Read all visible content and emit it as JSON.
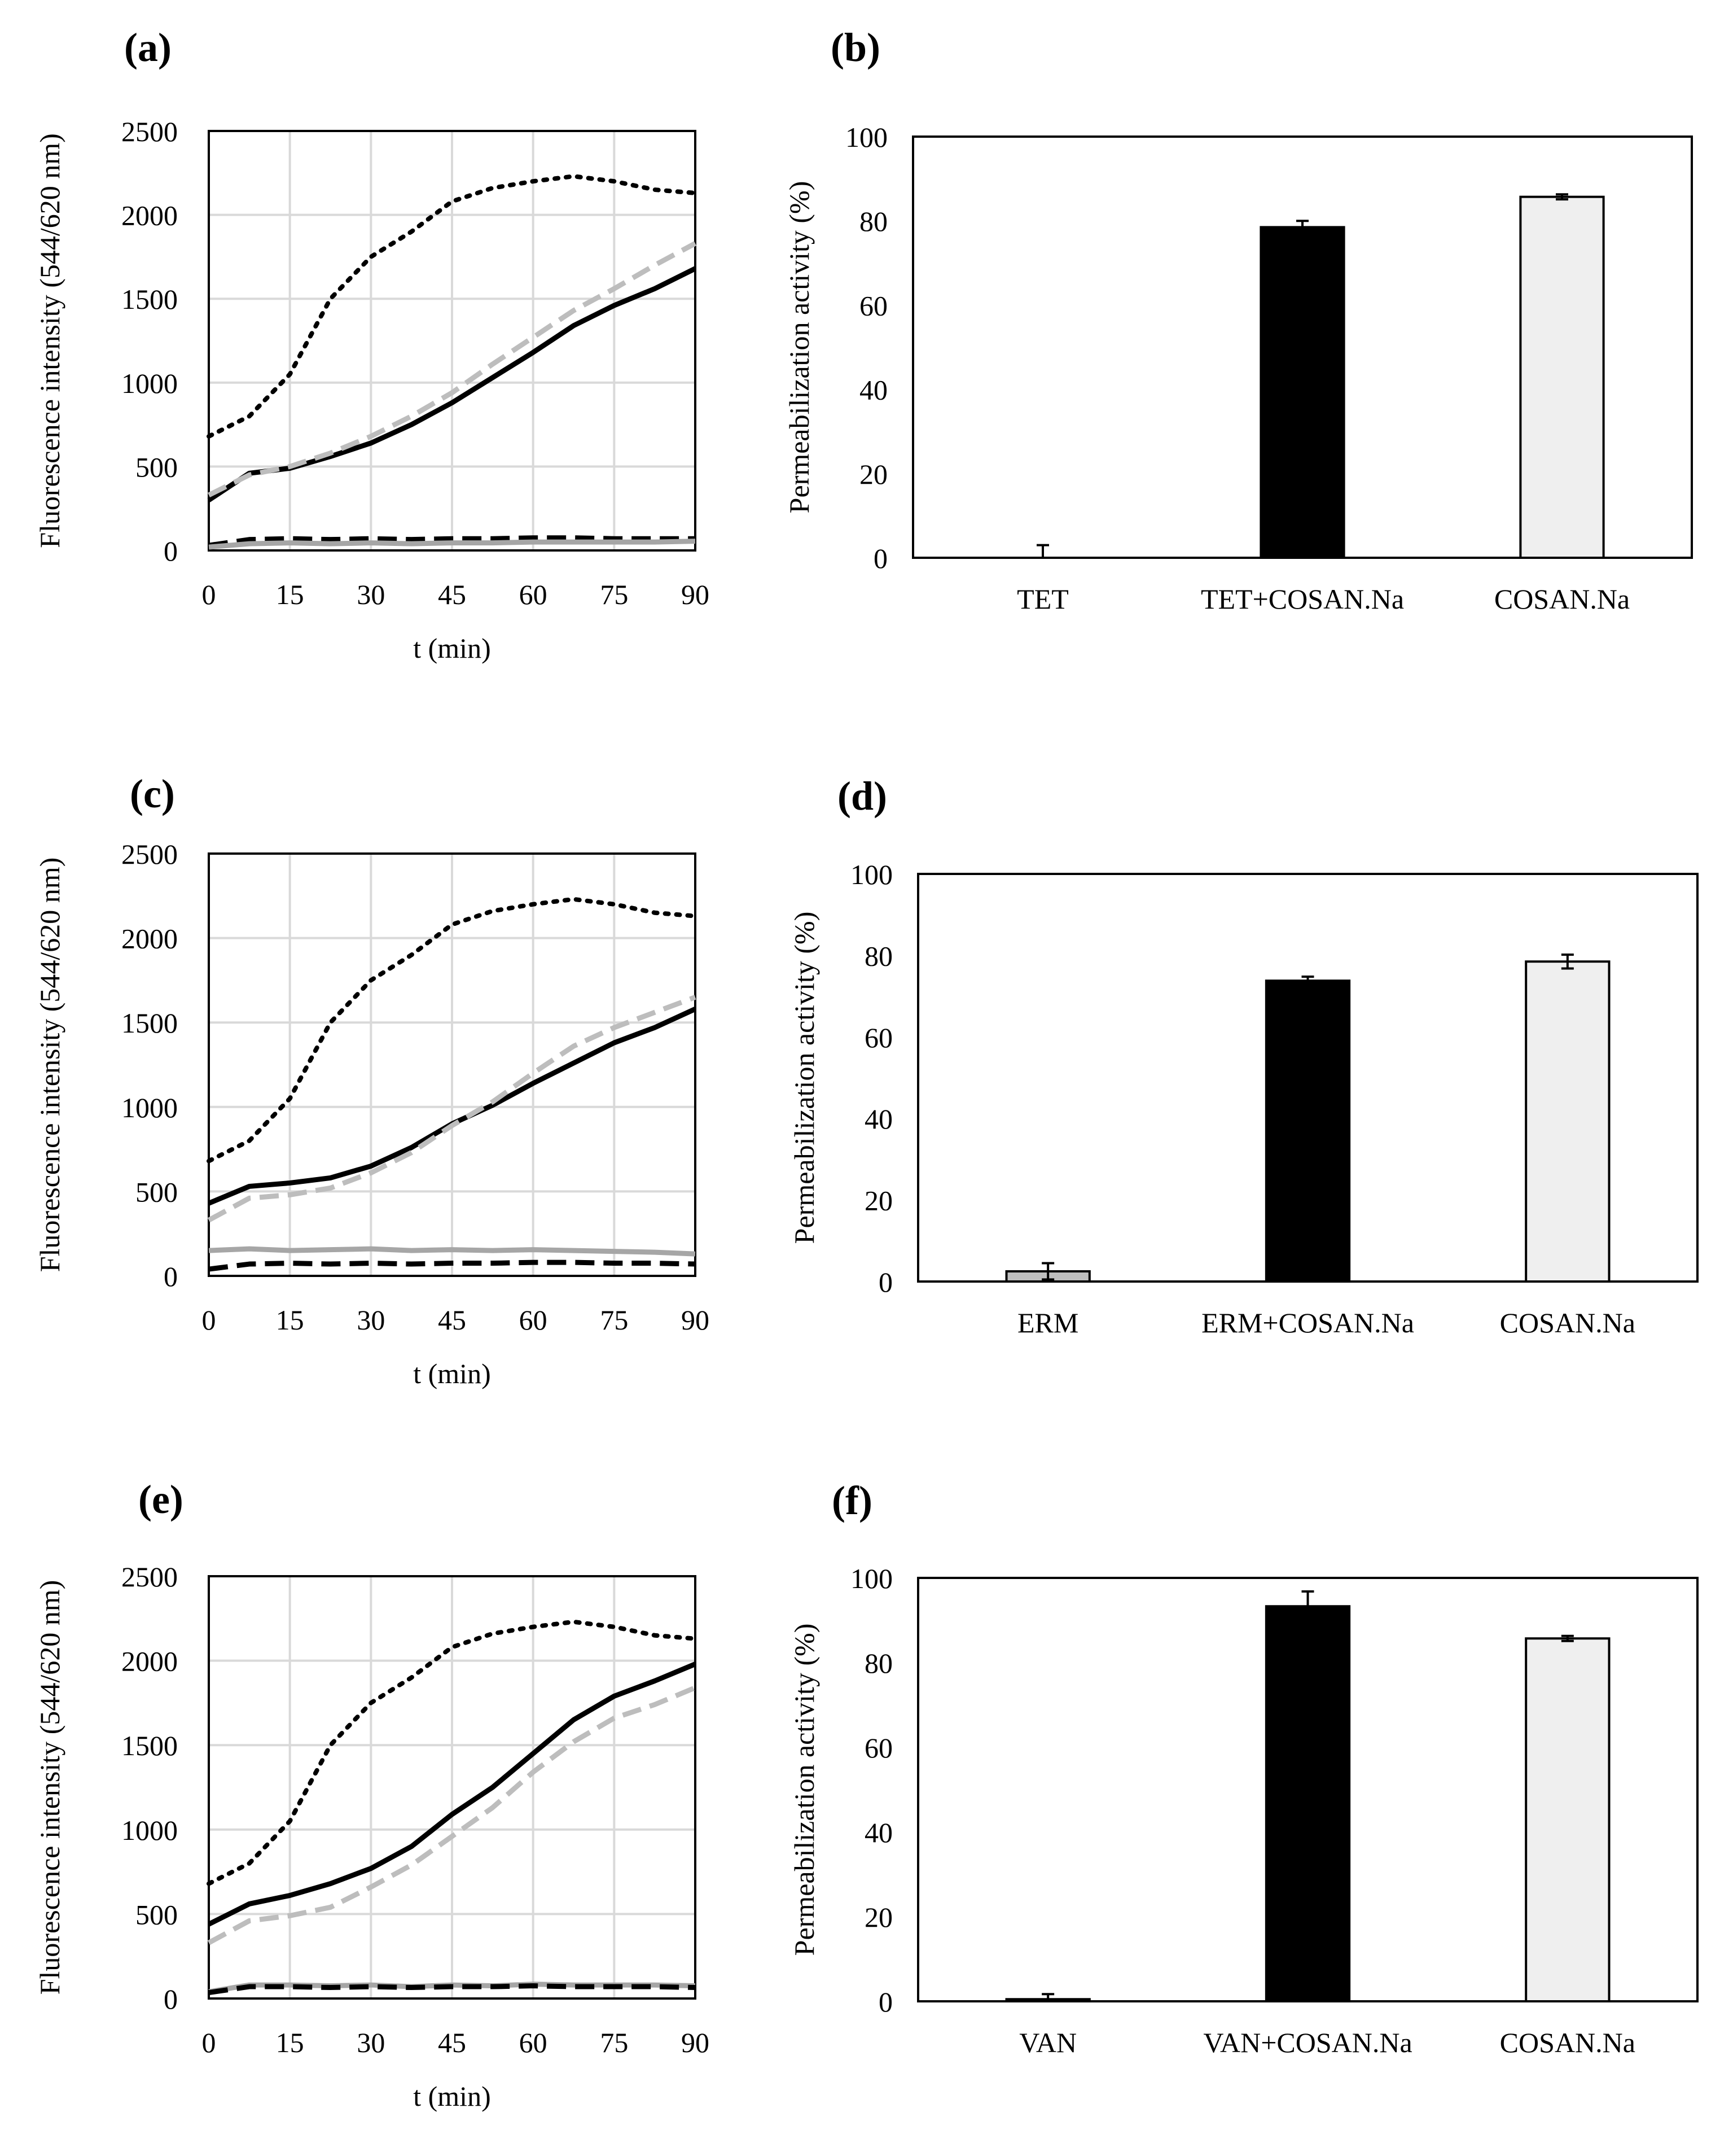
{
  "chart_data": [
    {
      "panel": "(a)",
      "type": "line",
      "xlabel": "t (min)",
      "ylabel": "Fluorescence intensity (544/620 nm)",
      "xlim": [
        0,
        90
      ],
      "ylim": [
        0,
        2500
      ],
      "xticks": [
        0,
        15,
        30,
        45,
        60,
        75,
        90
      ],
      "yticks": [
        0,
        500,
        1000,
        1500,
        2000,
        2500
      ],
      "grid": true,
      "x": [
        0,
        7.5,
        15,
        22.5,
        30,
        37.5,
        45,
        52.5,
        60,
        67.5,
        75,
        82.5,
        90
      ],
      "series": [
        {
          "name": "dotted-black",
          "color": "#000000",
          "style": "dotted",
          "values": [
            680,
            800,
            1050,
            1500,
            1750,
            1900,
            2080,
            2160,
            2200,
            2230,
            2200,
            2150,
            2130
          ]
        },
        {
          "name": "solid-black",
          "color": "#000000",
          "style": "solid",
          "values": [
            300,
            460,
            490,
            560,
            640,
            750,
            880,
            1030,
            1180,
            1340,
            1460,
            1560,
            1680
          ]
        },
        {
          "name": "dashed-grey",
          "color": "#bdbdbd",
          "style": "dashed",
          "values": [
            330,
            450,
            500,
            580,
            680,
            800,
            940,
            1110,
            1270,
            1430,
            1560,
            1700,
            1830
          ]
        },
        {
          "name": "dashed-black",
          "color": "#000000",
          "style": "dashed",
          "values": [
            30,
            65,
            70,
            65,
            70,
            65,
            70,
            70,
            75,
            75,
            70,
            70,
            70
          ]
        },
        {
          "name": "solid-grey",
          "color": "#a6a6a6",
          "style": "solid",
          "values": [
            20,
            40,
            45,
            40,
            45,
            40,
            45,
            45,
            50,
            50,
            50,
            50,
            55
          ]
        }
      ]
    },
    {
      "panel": "(b)",
      "type": "bar",
      "ylabel": "Permeabilization activity (%)",
      "ylim": [
        0,
        100
      ],
      "yticks": [
        0,
        20,
        40,
        60,
        80,
        100
      ],
      "grid": false,
      "categories": [
        "TET",
        "TET+COSAN.Na",
        "COSAN.Na"
      ],
      "values": [
        0,
        78.5,
        85.7
      ],
      "errors": [
        3,
        1.5,
        0.6
      ],
      "colors": [
        "#bfbfbf",
        "#000000",
        "#efefef"
      ]
    },
    {
      "panel": "(c)",
      "type": "line",
      "xlabel": "t (min)",
      "ylabel": "Fluorescence intensity (544/620 nm)",
      "xlim": [
        0,
        90
      ],
      "ylim": [
        0,
        2500
      ],
      "xticks": [
        0,
        15,
        30,
        45,
        60,
        75,
        90
      ],
      "yticks": [
        0,
        500,
        1000,
        1500,
        2000,
        2500
      ],
      "grid": true,
      "x": [
        0,
        7.5,
        15,
        22.5,
        30,
        37.5,
        45,
        52.5,
        60,
        67.5,
        75,
        82.5,
        90
      ],
      "series": [
        {
          "name": "dotted-black",
          "color": "#000000",
          "style": "dotted",
          "values": [
            680,
            800,
            1050,
            1500,
            1750,
            1900,
            2080,
            2160,
            2200,
            2230,
            2200,
            2150,
            2130
          ]
        },
        {
          "name": "solid-black",
          "color": "#000000",
          "style": "solid",
          "values": [
            430,
            530,
            550,
            580,
            650,
            760,
            900,
            1010,
            1140,
            1260,
            1380,
            1470,
            1580
          ]
        },
        {
          "name": "dashed-grey",
          "color": "#bdbdbd",
          "style": "dashed",
          "values": [
            330,
            460,
            480,
            520,
            610,
            730,
            890,
            1030,
            1200,
            1360,
            1470,
            1560,
            1650
          ]
        },
        {
          "name": "solid-grey",
          "color": "#a6a6a6",
          "style": "solid",
          "values": [
            150,
            160,
            150,
            155,
            160,
            150,
            155,
            150,
            155,
            150,
            145,
            140,
            130
          ]
        },
        {
          "name": "dashed-black",
          "color": "#000000",
          "style": "dashed",
          "values": [
            40,
            70,
            75,
            70,
            75,
            70,
            75,
            75,
            80,
            80,
            75,
            75,
            70
          ]
        }
      ]
    },
    {
      "panel": "(d)",
      "type": "bar",
      "ylabel": "Permeabilization activity (%)",
      "ylim": [
        0,
        100
      ],
      "yticks": [
        0,
        20,
        40,
        60,
        80,
        100
      ],
      "grid": false,
      "categories": [
        "ERM",
        "ERM+COSAN.Na",
        "COSAN.Na"
      ],
      "values": [
        2.5,
        73.8,
        78.5
      ],
      "errors": [
        2,
        1,
        1.7
      ],
      "colors": [
        "#bfbfbf",
        "#000000",
        "#efefef"
      ]
    },
    {
      "panel": "(e)",
      "type": "line",
      "xlabel": "t (min)",
      "ylabel": "Fluorescence intensity (544/620 nm)",
      "xlim": [
        0,
        90
      ],
      "ylim": [
        0,
        2500
      ],
      "xticks": [
        0,
        15,
        30,
        45,
        60,
        75,
        90
      ],
      "yticks": [
        0,
        500,
        1000,
        1500,
        2000,
        2500
      ],
      "grid": true,
      "x": [
        0,
        7.5,
        15,
        22.5,
        30,
        37.5,
        45,
        52.5,
        60,
        67.5,
        75,
        82.5,
        90
      ],
      "series": [
        {
          "name": "dotted-black",
          "color": "#000000",
          "style": "dotted",
          "values": [
            680,
            800,
            1050,
            1500,
            1750,
            1900,
            2080,
            2160,
            2200,
            2230,
            2200,
            2150,
            2130
          ]
        },
        {
          "name": "solid-black",
          "color": "#000000",
          "style": "solid",
          "values": [
            440,
            560,
            610,
            680,
            770,
            900,
            1090,
            1250,
            1450,
            1650,
            1790,
            1880,
            1980
          ]
        },
        {
          "name": "dashed-grey",
          "color": "#bdbdbd",
          "style": "dashed",
          "values": [
            330,
            460,
            490,
            540,
            660,
            790,
            960,
            1130,
            1340,
            1520,
            1660,
            1740,
            1840
          ]
        },
        {
          "name": "solid-grey",
          "color": "#a6a6a6",
          "style": "solid",
          "values": [
            40,
            80,
            80,
            75,
            80,
            70,
            80,
            75,
            85,
            80,
            80,
            80,
            75
          ]
        },
        {
          "name": "dashed-black",
          "color": "#000000",
          "style": "dashed",
          "values": [
            35,
            70,
            70,
            65,
            70,
            65,
            70,
            70,
            75,
            70,
            70,
            70,
            65
          ]
        }
      ]
    },
    {
      "panel": "(f)",
      "type": "bar",
      "ylabel": "Permeabilization activity (%)",
      "ylim": [
        0,
        100
      ],
      "yticks": [
        0,
        20,
        40,
        60,
        80,
        100
      ],
      "grid": false,
      "categories": [
        "VAN",
        "VAN+COSAN.Na",
        "COSAN.Na"
      ],
      "values": [
        0.5,
        93.3,
        85.7
      ],
      "errors": [
        1.2,
        3.5,
        0.6
      ],
      "colors": [
        "#bfbfbf",
        "#000000",
        "#efefef"
      ]
    }
  ]
}
